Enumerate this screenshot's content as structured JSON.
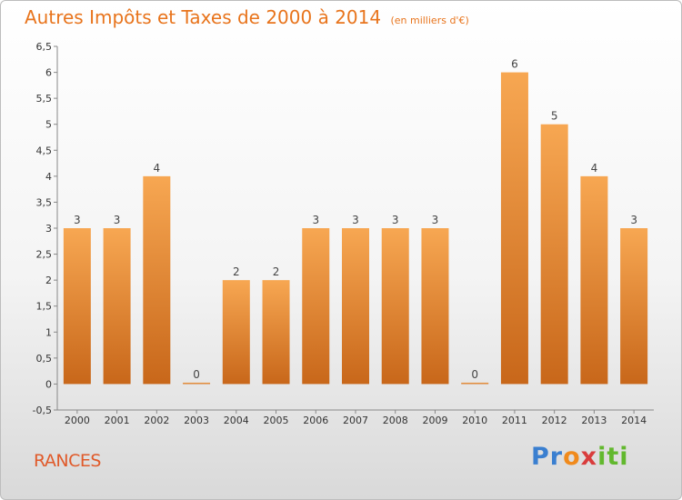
{
  "header": {
    "title": "Autres Impôts et Taxes de 2000 à 2014",
    "subtitle": "(en milliers d'€)"
  },
  "footer": {
    "place": "RANCES",
    "logo_text": "Proxiti"
  },
  "colors": {
    "bar_light": "#f7a752",
    "bar_dark": "#c8671a",
    "title": "#e8741c"
  },
  "chart_data": {
    "type": "bar",
    "title": "Autres Impôts et Taxes de 2000 à 2014",
    "subtitle": "(en milliers d'€)",
    "categories": [
      "2000",
      "2001",
      "2002",
      "2003",
      "2004",
      "2005",
      "2006",
      "2007",
      "2008",
      "2009",
      "2010",
      "2011",
      "2012",
      "2013",
      "2014"
    ],
    "values": [
      3,
      3,
      4,
      0,
      2,
      2,
      3,
      3,
      3,
      3,
      0,
      6,
      5,
      4,
      3
    ],
    "data_labels": [
      "3",
      "3",
      "4",
      "0",
      "2",
      "2",
      "3",
      "3",
      "3",
      "3",
      "0",
      "6",
      "5",
      "4",
      "3"
    ],
    "y_ticks": [
      "-0,5",
      "0",
      "0,5",
      "1",
      "1,5",
      "2",
      "2,5",
      "3",
      "3,5",
      "4",
      "4,5",
      "5",
      "5,5",
      "6",
      "6,5"
    ],
    "ylim": [
      -0.5,
      6.5
    ],
    "grid": false,
    "legend": "none"
  }
}
